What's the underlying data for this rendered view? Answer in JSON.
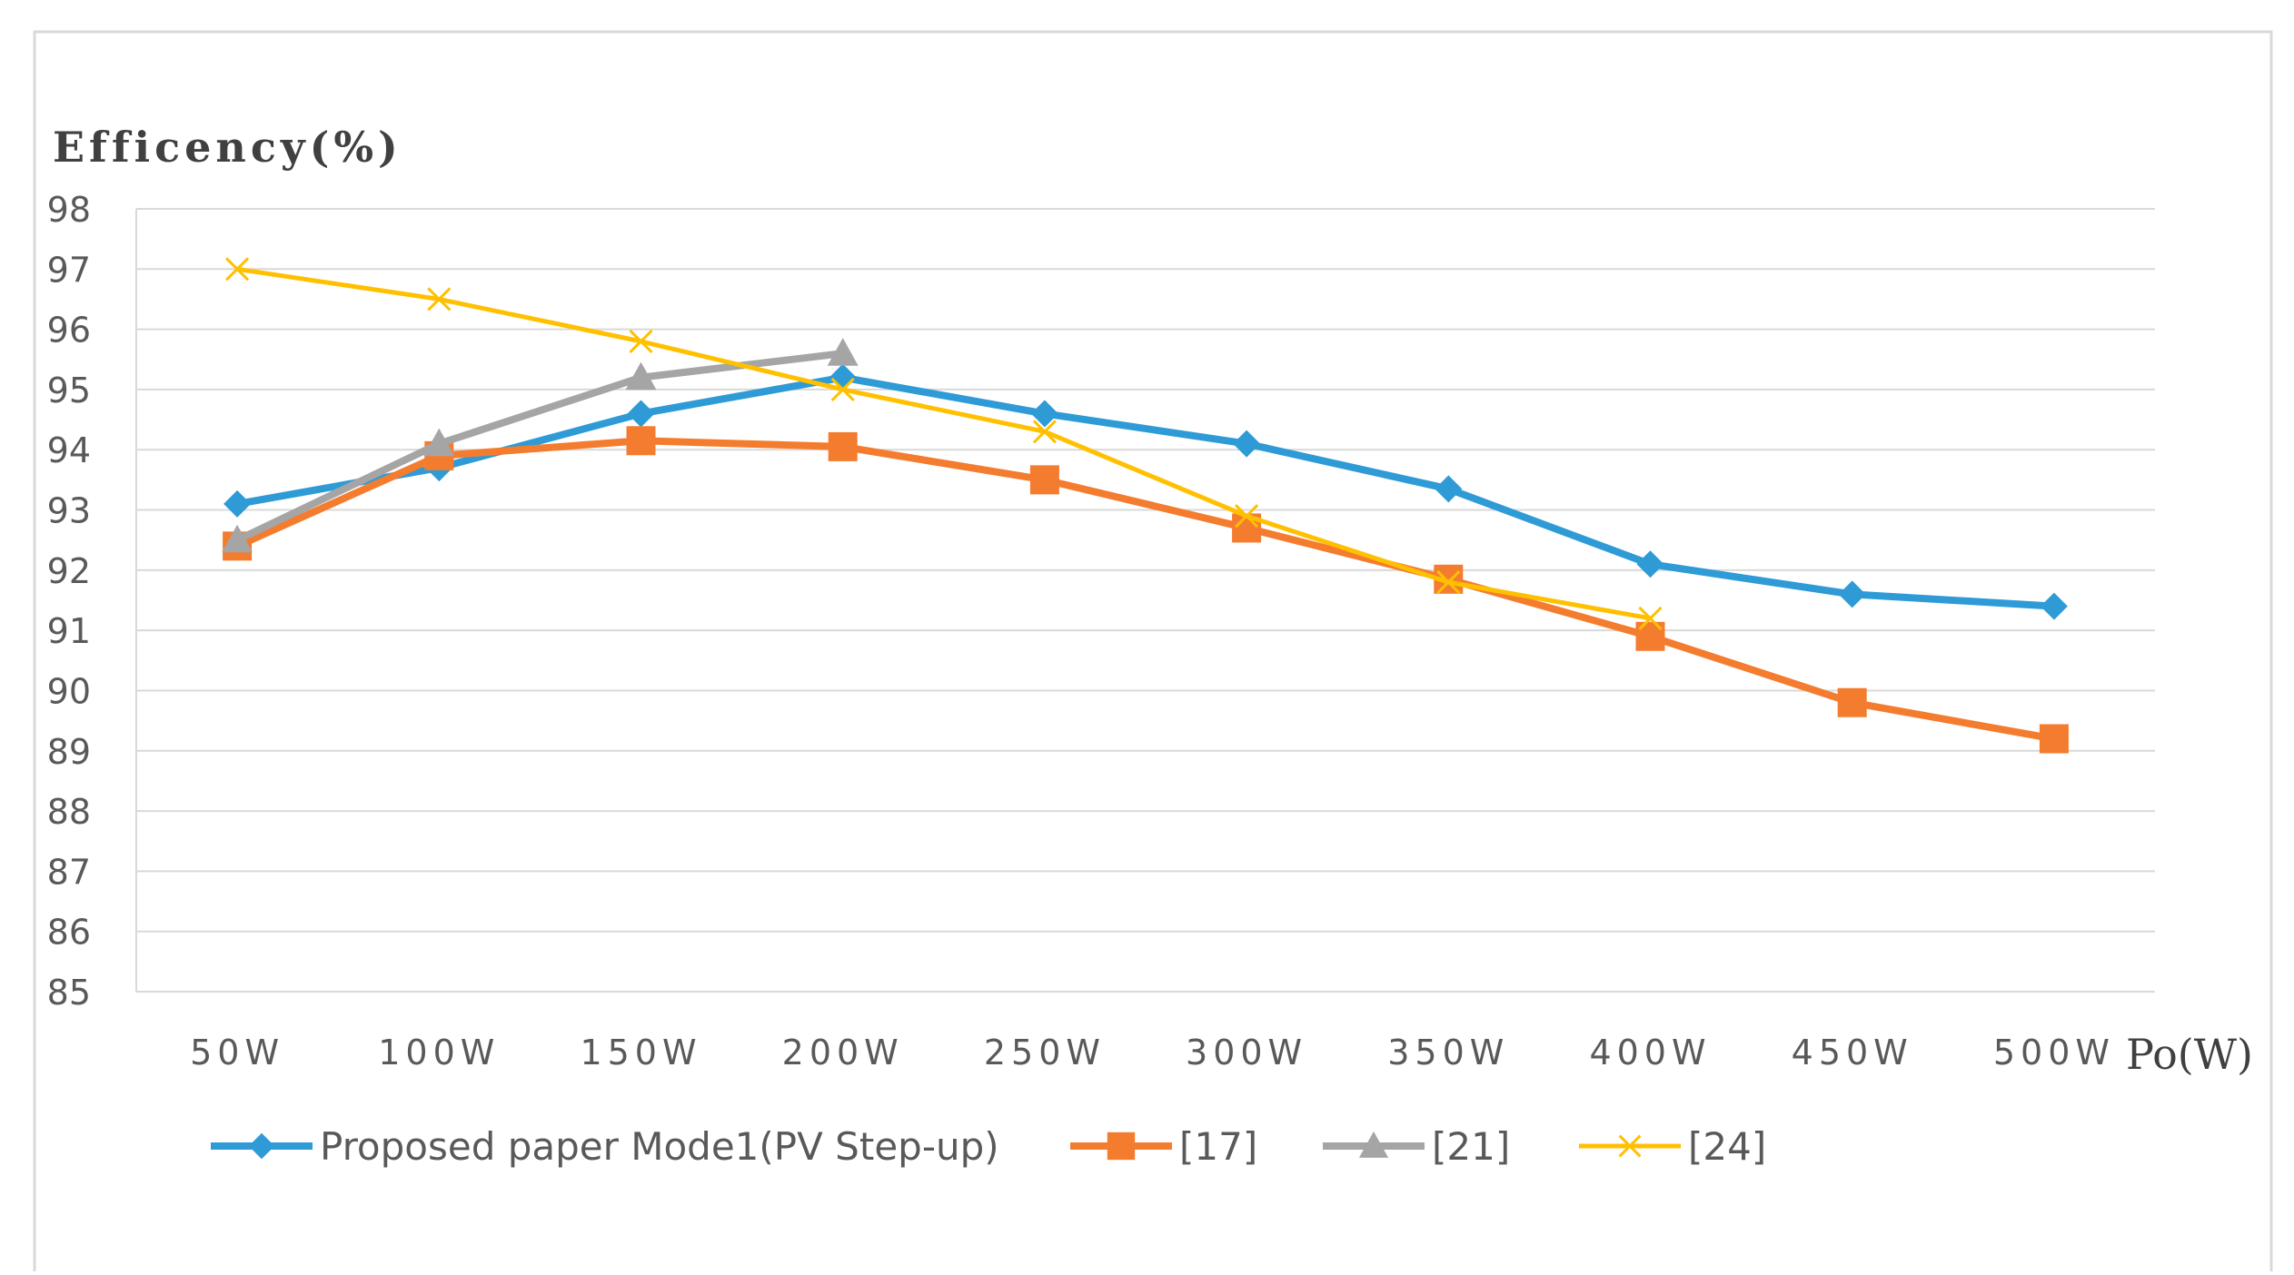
{
  "chart_data": {
    "type": "line",
    "title": "",
    "ylabel": "Efficency(%)",
    "xlabel": "Po(W)",
    "categories": [
      "50W",
      "100W",
      "150W",
      "200W",
      "250W",
      "300W",
      "350W",
      "400W",
      "450W",
      "500W"
    ],
    "ylim": [
      85,
      98
    ],
    "yticks": [
      "85",
      "86",
      "87",
      "88",
      "89",
      "90",
      "91",
      "92",
      "93",
      "94",
      "95",
      "96",
      "97",
      "98"
    ],
    "grid": true,
    "legend": "bottom",
    "series": [
      {
        "name": "Proposed paper Mode1(PV Step-up)",
        "color": "#2E9BD6",
        "marker": "diamond",
        "values": [
          93.1,
          93.7,
          94.6,
          95.2,
          94.6,
          94.1,
          93.35,
          92.1,
          91.6,
          91.4
        ]
      },
      {
        "name": "[17]",
        "color": "#F47C2F",
        "marker": "square",
        "values": [
          92.4,
          93.9,
          94.15,
          94.05,
          93.5,
          92.7,
          91.85,
          90.9,
          89.8,
          89.2
        ]
      },
      {
        "name": "[21]",
        "color": "#A5A5A5",
        "marker": "triangle",
        "values": [
          92.5,
          94.1,
          95.2,
          95.6,
          null,
          null,
          null,
          null,
          null,
          null
        ]
      },
      {
        "name": "[24]",
        "color": "#FFC000",
        "marker": "x",
        "values": [
          97.0,
          96.5,
          95.8,
          95.0,
          94.3,
          92.9,
          91.8,
          91.2,
          null,
          null
        ]
      }
    ]
  }
}
